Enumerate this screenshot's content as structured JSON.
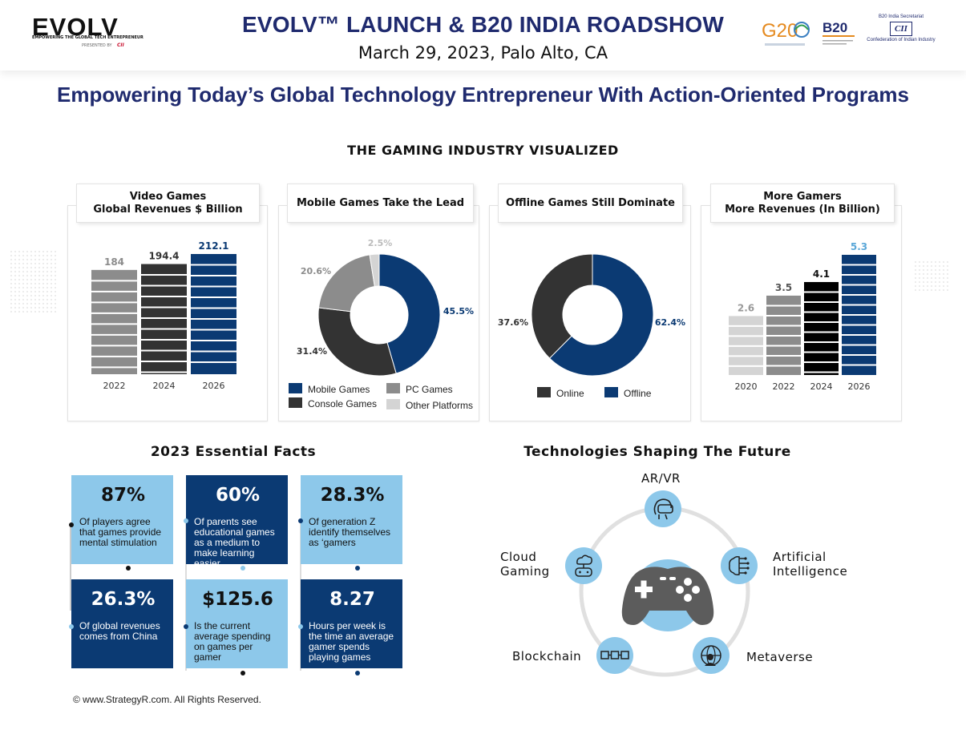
{
  "header": {
    "logo_text": "EVOLV",
    "logo_tagline": "EMPOWERING THE GLOBAL TECH ENTREPRENEUR",
    "logo_presented": "PRESENTED BY",
    "logo_presenter": "CII",
    "title": "EVOLV™ LAUNCH & B20 INDIA ROADSHOW",
    "date": "March 29, 2023, Palo Alto, CA",
    "g20_text": "G20",
    "b20_text": "B20",
    "cii_top": "B20 India Secretariat",
    "cii_mark": "CII",
    "cii_bottom": "Confederation of Indian Industry"
  },
  "subtitle": "Empowering Today’s Global Technology Entrepreneur With Action-Oriented Programs",
  "section_title": "THE GAMING INDUSTRY VISUALIZED",
  "colors": {
    "navy": "#0b3a73",
    "dark_gray": "#333333",
    "mid_gray": "#8c8c8c",
    "light_gray": "#d4d4d4",
    "light_blue": "#8dc8ea",
    "title_blue": "#1f2a6e"
  },
  "chart_data": [
    {
      "type": "bar",
      "title": [
        "Video Games",
        "Global Revenues $ Billion"
      ],
      "categories": [
        "2022",
        "2024",
        "2026"
      ],
      "values": [
        184,
        194.4,
        212.1
      ],
      "value_labels": [
        "184",
        "194.4",
        "212.1"
      ],
      "colors": [
        "#8c8c8c",
        "#333333",
        "#0b3a73"
      ],
      "ylim": [
        0,
        212.1
      ]
    },
    {
      "type": "pie",
      "title": "Mobile Games  Take the Lead",
      "labels": [
        "Mobile Games",
        "Console Games",
        "PC Games",
        "Other Platforms"
      ],
      "values": [
        45.5,
        31.4,
        20.6,
        2.5
      ],
      "value_labels": [
        "45.5%",
        "31.4%",
        "20.6%",
        "2.5%"
      ],
      "colors": [
        "#0b3a73",
        "#333333",
        "#8c8c8c",
        "#d4d4d4"
      ],
      "donut": true
    },
    {
      "type": "pie",
      "title": "Offline Games Still Dominate",
      "labels": [
        "Offline",
        "Online"
      ],
      "values": [
        62.4,
        37.6
      ],
      "value_labels": [
        "62.4%",
        "37.6%"
      ],
      "colors": [
        "#0b3a73",
        "#333333"
      ],
      "legend_order": [
        "Online",
        "Offline"
      ],
      "donut": true
    },
    {
      "type": "bar",
      "title": [
        "More Gamers",
        "More Revenues (In Billion)"
      ],
      "categories": [
        "2020",
        "2022",
        "2024",
        "2026"
      ],
      "values": [
        2.6,
        3.5,
        4.1,
        5.3
      ],
      "value_labels": [
        "2.6",
        "3.5",
        "4.1",
        "5.3"
      ],
      "colors": [
        "#d4d4d4",
        "#8c8c8c",
        "#000000",
        "#0b3a73"
      ],
      "label_colors": [
        "#999999",
        "#555555",
        "#111111",
        "#5aa7d8"
      ],
      "ylim": [
        0,
        5.3
      ]
    }
  ],
  "facts": {
    "heading": "2023 Essential Facts",
    "items": [
      {
        "value": "87%",
        "text": "Of players agree that games provide mental stimulation"
      },
      {
        "value": "60%",
        "text": "Of parents see educational games as a medium to make learning easier"
      },
      {
        "value": "28.3%",
        "text": "Of generation Z identify themselves as ‘gamers"
      },
      {
        "value": "26.3%",
        "text": "Of global revenues comes from China"
      },
      {
        "value": "$125.6",
        "text": "Is the  current average spending on games per gamer"
      },
      {
        "value": "8.27",
        "text": "Hours per week is the time an average gamer spends playing games"
      }
    ]
  },
  "tech": {
    "heading": "Technologies Shaping The Future",
    "arvr": "AR/VR",
    "ai_line1": "Artificial",
    "ai_line2": "Intelligence",
    "cloud_line1": "Cloud",
    "cloud_line2": "Gaming",
    "blockchain": "Blockchain",
    "metaverse": "Metaverse"
  },
  "copyright": "© www.StrategyR.com. All Rights Reserved."
}
